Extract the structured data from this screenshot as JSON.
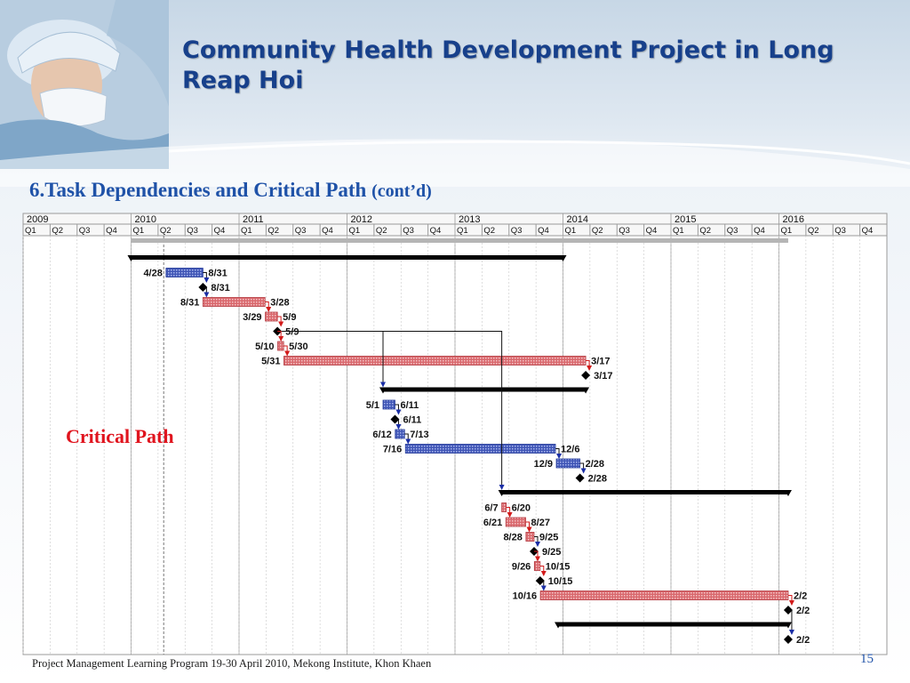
{
  "slide": {
    "title": "Community Health Development Project in Long Reap Hoi",
    "subtitle_main": "6.Task Dependencies and Critical Path",
    "subtitle_small": "(cont’d)",
    "critical_path_label": "Critical Path",
    "footer": "Project Management Learning Program 19-30 April 2010, Mekong Institute, Khon Khaen",
    "page_number": "15"
  },
  "gantt": {
    "years": [
      "2009",
      "2010",
      "2011",
      "2012",
      "2013",
      "2014",
      "2015",
      "2016"
    ],
    "quarters": [
      "Q1",
      "Q2",
      "Q3",
      "Q4"
    ],
    "colors": {
      "blue_task": "#3f55b5",
      "red_task": "#d9686d",
      "summary": "#000000",
      "critical_arrow": "#d21a1a",
      "normal_arrow": "#1a2ea6",
      "milestone": "#000000",
      "grid": "#c8c8c8",
      "header_border": "#9a9a9a"
    },
    "rows": [
      {
        "type": "summary",
        "start": "2010-01-01",
        "end": "2014-01-01"
      },
      {
        "type": "task",
        "color": "blue",
        "start": "2010-04-28",
        "end": "2010-08-31",
        "start_label": "4/28",
        "end_label": "8/31"
      },
      {
        "type": "milestone",
        "date": "2010-08-31",
        "label": "8/31"
      },
      {
        "type": "task",
        "color": "red",
        "start": "2010-08-31",
        "end": "2011-03-28",
        "start_label": "8/31",
        "end_label": "3/28"
      },
      {
        "type": "task",
        "color": "red",
        "start": "2011-03-29",
        "end": "2011-05-09",
        "start_label": "3/29",
        "end_label": "5/9"
      },
      {
        "type": "milestone",
        "date": "2011-05-09",
        "label": "5/9"
      },
      {
        "type": "task",
        "color": "red",
        "start": "2011-05-10",
        "end": "2011-05-30",
        "start_label": "5/10",
        "end_label": "5/30"
      },
      {
        "type": "task",
        "color": "red",
        "start": "2011-05-31",
        "end": "2014-03-17",
        "start_label": "5/31",
        "end_label": "3/17"
      },
      {
        "type": "milestone",
        "date": "2014-03-17",
        "label": "3/17"
      },
      {
        "type": "summary",
        "start": "2012-05-01",
        "end": "2014-03-17"
      },
      {
        "type": "task",
        "color": "blue",
        "start": "2012-05-01",
        "end": "2012-06-11",
        "start_label": "5/1",
        "end_label": "6/11"
      },
      {
        "type": "milestone",
        "date": "2012-06-11",
        "label": "6/11"
      },
      {
        "type": "task",
        "color": "blue",
        "start": "2012-06-12",
        "end": "2012-07-13",
        "start_label": "6/12",
        "end_label": "7/13"
      },
      {
        "type": "task",
        "color": "blue",
        "start": "2012-07-16",
        "end": "2013-12-06",
        "start_label": "7/16",
        "end_label": "12/6"
      },
      {
        "type": "task",
        "color": "blue",
        "start": "2013-12-09",
        "end": "2014-02-28",
        "start_label": "12/9",
        "end_label": "2/28"
      },
      {
        "type": "milestone",
        "date": "2014-02-28",
        "label": "2/28"
      },
      {
        "type": "summary",
        "start": "2013-06-07",
        "end": "2016-02-02"
      },
      {
        "type": "task",
        "color": "red",
        "start": "2013-06-07",
        "end": "2013-06-20",
        "start_label": "6/7",
        "end_label": "6/20"
      },
      {
        "type": "task",
        "color": "red",
        "start": "2013-06-21",
        "end": "2013-08-27",
        "start_label": "6/21",
        "end_label": "8/27"
      },
      {
        "type": "task",
        "color": "red",
        "start": "2013-08-28",
        "end": "2013-09-25",
        "start_label": "8/28",
        "end_label": "9/25"
      },
      {
        "type": "milestone",
        "date": "2013-09-25",
        "label": "9/25"
      },
      {
        "type": "task",
        "color": "red",
        "start": "2013-09-26",
        "end": "2013-10-15",
        "start_label": "9/26",
        "end_label": "10/15"
      },
      {
        "type": "milestone",
        "date": "2013-10-15",
        "label": "10/15"
      },
      {
        "type": "task",
        "color": "red",
        "start": "2013-10-16",
        "end": "2016-02-02",
        "start_label": "10/16",
        "end_label": "2/2"
      },
      {
        "type": "milestone",
        "date": "2016-02-02",
        "label": "2/2"
      },
      {
        "type": "summary",
        "start": "2013-12-15",
        "end": "2016-02-02"
      },
      {
        "type": "milestone",
        "date": "2016-02-02",
        "label": "2/2"
      }
    ],
    "links": [
      [
        1,
        2,
        "n"
      ],
      [
        2,
        3,
        "n"
      ],
      [
        3,
        4,
        "c"
      ],
      [
        4,
        5,
        "c"
      ],
      [
        5,
        6,
        "c"
      ],
      [
        6,
        7,
        "c"
      ],
      [
        7,
        8,
        "c"
      ],
      [
        10,
        11,
        "n"
      ],
      [
        11,
        12,
        "n"
      ],
      [
        12,
        13,
        "n"
      ],
      [
        13,
        14,
        "n"
      ],
      [
        14,
        15,
        "n"
      ],
      [
        17,
        18,
        "c"
      ],
      [
        18,
        19,
        "c"
      ],
      [
        19,
        20,
        "n"
      ],
      [
        20,
        21,
        "c"
      ],
      [
        21,
        22,
        "c"
      ],
      [
        22,
        23,
        "n"
      ],
      [
        23,
        24,
        "c"
      ],
      [
        24,
        26,
        "n"
      ]
    ]
  }
}
